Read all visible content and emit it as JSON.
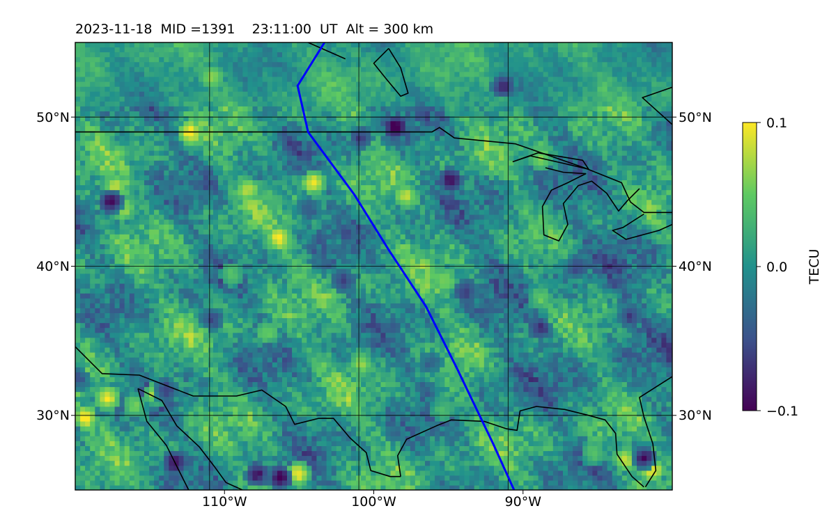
{
  "chart_data": {
    "type": "heatmap",
    "title": "2023-11-18  MID =1391    23:11:00  UT  Alt = 300 km",
    "xlim": [
      -119,
      -79
    ],
    "ylim": [
      25,
      55
    ],
    "x_ticks": [
      {
        "value": -110,
        "label": "110°W"
      },
      {
        "value": -100,
        "label": "100°W"
      },
      {
        "value": -90,
        "label": "90°W"
      }
    ],
    "y_ticks": [
      {
        "value": 50,
        "label": "50°N"
      },
      {
        "value": 40,
        "label": "40°N"
      },
      {
        "value": 30,
        "label": "30°N"
      }
    ],
    "grid": true,
    "colorbar": {
      "label": "TECU",
      "range": [
        -0.1,
        0.1
      ],
      "ticks": [
        {
          "value": 0.1,
          "label": "0.1"
        },
        {
          "value": 0.0,
          "label": "0.0"
        },
        {
          "value": -0.1,
          "label": "−0.1"
        }
      ],
      "colormap": [
        "#440154",
        "#3b528b",
        "#21918c",
        "#5ec962",
        "#fde725"
      ]
    },
    "track": {
      "color": "#0000ff",
      "points": [
        [
          -102.3,
          55
        ],
        [
          -104.1,
          52.1
        ],
        [
          -103.4,
          49
        ],
        [
          -100.3,
          44.8
        ],
        [
          -98.0,
          41.1
        ],
        [
          -95.5,
          37.3
        ],
        [
          -93.4,
          33.1
        ],
        [
          -91.0,
          28.1
        ],
        [
          -89.6,
          25
        ]
      ]
    },
    "coastlines": [
      [
        [
          -119,
          49
        ],
        [
          -95.1,
          49
        ],
        [
          -94.6,
          49.3
        ],
        [
          -93.6,
          48.6
        ],
        [
          -89.5,
          48.2
        ],
        [
          -84.9,
          46.6
        ],
        [
          -82.4,
          45.6
        ],
        [
          -81.8,
          44.3
        ],
        [
          -80.9,
          43.6
        ],
        [
          -79,
          43.6
        ]
      ],
      [
        [
          -80.9,
          43.5
        ],
        [
          -82.3,
          42.6
        ],
        [
          -83.0,
          42.4
        ],
        [
          -82.1,
          41.8
        ],
        [
          -79.9,
          42.4
        ],
        [
          -79,
          42.8
        ]
      ],
      [
        [
          -87.5,
          46.6
        ],
        [
          -86.3,
          46.3
        ],
        [
          -84.8,
          46.2
        ],
        [
          -86.0,
          45.6
        ],
        [
          -87.1,
          45.1
        ],
        [
          -87.7,
          44.0
        ],
        [
          -87.6,
          42.1
        ],
        [
          -86.6,
          41.7
        ],
        [
          -86.0,
          42.8
        ],
        [
          -86.3,
          44.2
        ],
        [
          -85.3,
          45.4
        ],
        [
          -84.4,
          45.7
        ],
        [
          -83.4,
          44.9
        ],
        [
          -82.6,
          43.7
        ],
        [
          -82.0,
          44.4
        ],
        [
          -81.2,
          45.2
        ]
      ],
      [
        [
          -119,
          34.6
        ],
        [
          -117.2,
          32.8
        ],
        [
          -114.7,
          32.7
        ],
        [
          -111.1,
          31.3
        ],
        [
          -108.2,
          31.3
        ],
        [
          -106.5,
          31.7
        ],
        [
          -104.9,
          30.6
        ],
        [
          -104.3,
          29.4
        ],
        [
          -102.7,
          29.8
        ],
        [
          -101.7,
          29.8
        ],
        [
          -100.6,
          28.5
        ],
        [
          -99.5,
          27.5
        ],
        [
          -99.2,
          26.3
        ],
        [
          -97.9,
          25.9
        ],
        [
          -97.2,
          25.9
        ]
      ],
      [
        [
          -97.2,
          25.9
        ],
        [
          -97.4,
          27.3
        ],
        [
          -96.8,
          28.4
        ],
        [
          -94.8,
          29.3
        ],
        [
          -93.8,
          29.7
        ],
        [
          -91.6,
          29.6
        ],
        [
          -90.1,
          29.1
        ],
        [
          -89.4,
          29.0
        ],
        [
          -89.2,
          30.3
        ],
        [
          -88.1,
          30.6
        ],
        [
          -86.2,
          30.4
        ],
        [
          -84.6,
          30.0
        ],
        [
          -83.5,
          29.7
        ],
        [
          -82.8,
          28.8
        ],
        [
          -82.7,
          27.4
        ],
        [
          -81.7,
          25.9
        ],
        [
          -80.9,
          25.2
        ]
      ],
      [
        [
          -80.8,
          25.2
        ],
        [
          -80.1,
          26.3
        ],
        [
          -80.3,
          28.1
        ],
        [
          -80.9,
          29.9
        ],
        [
          -81.2,
          31.2
        ],
        [
          -79,
          32.6
        ]
      ],
      [
        [
          -114.8,
          31.8
        ],
        [
          -113.2,
          31.0
        ],
        [
          -112.2,
          29.3
        ],
        [
          -110.7,
          27.9
        ],
        [
          -109.7,
          26.6
        ],
        [
          -108.9,
          25.5
        ],
        [
          -107.8,
          25.0
        ]
      ],
      [
        [
          -114.8,
          31.8
        ],
        [
          -114.2,
          29.6
        ],
        [
          -112.9,
          28.0
        ],
        [
          -112.3,
          26.8
        ],
        [
          -111.4,
          25.0
        ]
      ],
      [
        [
          -103.4,
          55
        ],
        [
          -100.9,
          53.9
        ]
      ],
      [
        [
          -98.0,
          54.6
        ],
        [
          -97.2,
          53.3
        ],
        [
          -96.7,
          51.6
        ],
        [
          -97.2,
          51.4
        ],
        [
          -98.2,
          52.6
        ],
        [
          -99.0,
          53.6
        ],
        [
          -98.0,
          54.6
        ]
      ],
      [
        [
          -89.7,
          47.0
        ],
        [
          -88.0,
          47.6
        ],
        [
          -85.0,
          47.1
        ],
        [
          -84.6,
          46.5
        ],
        [
          -86.3,
          46.9
        ],
        [
          -88.5,
          47.4
        ],
        [
          -89.7,
          47.0
        ]
      ],
      [
        [
          -79.0,
          49.5
        ],
        [
          -81.0,
          51.3
        ],
        [
          -79.0,
          52.0
        ]
      ]
    ],
    "hotspots": [
      {
        "lon": -117,
        "lat": 31.3,
        "v": 0.1
      },
      {
        "lon": -113.8,
        "lat": 31.6,
        "v": 0.09
      },
      {
        "lon": -104.2,
        "lat": 26.3,
        "v": 0.1
      },
      {
        "lon": -103.2,
        "lat": 45.8,
        "v": 0.1
      },
      {
        "lon": -105.5,
        "lat": 42.0,
        "v": 0.09
      },
      {
        "lon": -111.5,
        "lat": 49.1,
        "v": 0.1
      },
      {
        "lon": -118.5,
        "lat": 30.0,
        "v": 0.1
      },
      {
        "lon": -116.0,
        "lat": 44.0,
        "v": 0.075
      },
      {
        "lon": -80.5,
        "lat": 26.5,
        "v": 0.1
      },
      {
        "lon": -82.3,
        "lat": 27.2,
        "v": 0.08
      },
      {
        "lon": -107.6,
        "lat": 45.3,
        "v": 0.07
      },
      {
        "lon": -97.0,
        "lat": 44.8,
        "v": 0.07
      },
      {
        "lon": -94.4,
        "lat": 39.2,
        "v": 0.06
      },
      {
        "lon": -108.7,
        "lat": 39.6,
        "v": 0.06
      },
      {
        "lon": -116.5,
        "lat": 45.5,
        "v": 0.07
      },
      {
        "lon": -100.0,
        "lat": 33.6,
        "v": 0.06
      },
      {
        "lon": -88.0,
        "lat": 38.0,
        "v": 0.05
      },
      {
        "lon": -106.3,
        "lat": 35.7,
        "v": 0.06
      },
      {
        "lon": -110.0,
        "lat": 52.8,
        "v": 0.06
      },
      {
        "lon": -94.6,
        "lat": 30.5,
        "v": 0.05
      },
      {
        "lon": -84.5,
        "lat": 27.6,
        "v": 0.05
      },
      {
        "lon": -115.2,
        "lat": 30.8,
        "v": 0.06
      },
      {
        "lon": -88.0,
        "lat": 47.4,
        "v": 0.06
      },
      {
        "lon": -105.4,
        "lat": 26.0,
        "v": -0.1
      },
      {
        "lon": -107.0,
        "lat": 26.2,
        "v": -0.09
      },
      {
        "lon": -116.7,
        "lat": 44.5,
        "v": -0.1
      },
      {
        "lon": -97.7,
        "lat": 49.5,
        "v": -0.1
      },
      {
        "lon": -112.5,
        "lat": 27.0,
        "v": -0.09
      },
      {
        "lon": -94.0,
        "lat": 46.0,
        "v": -0.09
      },
      {
        "lon": -90.5,
        "lat": 52.2,
        "v": -0.08
      },
      {
        "lon": -100.0,
        "lat": 48.8,
        "v": -0.07
      },
      {
        "lon": -88.0,
        "lat": 36.0,
        "v": -0.07
      },
      {
        "lon": -110.0,
        "lat": 36.6,
        "v": -0.06
      },
      {
        "lon": -93.0,
        "lat": 38.5,
        "v": -0.06
      },
      {
        "lon": -101.2,
        "lat": 39.2,
        "v": -0.06
      },
      {
        "lon": -81.0,
        "lat": 27.3,
        "v": -0.09
      },
      {
        "lon": -113.2,
        "lat": 31.8,
        "v": -0.07
      },
      {
        "lon": -95.3,
        "lat": 33.7,
        "v": -0.05
      },
      {
        "lon": -85.6,
        "lat": 40.1,
        "v": -0.06
      },
      {
        "lon": -82.0,
        "lat": 36.8,
        "v": -0.06
      },
      {
        "lon": -103.5,
        "lat": 44.0,
        "v": -0.05
      },
      {
        "lon": -119,
        "lat": 32.6,
        "v": -0.06
      }
    ]
  }
}
